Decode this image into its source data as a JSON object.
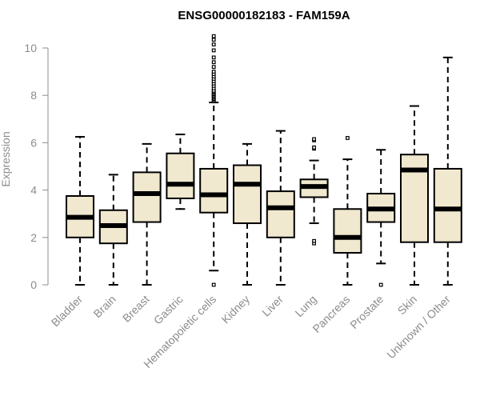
{
  "chart_data": {
    "type": "boxplot",
    "title": "ENSG00000182183 - FAM159A",
    "xlabel": "",
    "ylabel": "Expression",
    "ylim": [
      0,
      10.5
    ],
    "yticks": [
      0,
      2,
      4,
      6,
      8,
      10
    ],
    "grid": false,
    "legend": "none",
    "colors": {
      "box_fill": "#f0e8cf",
      "box_stroke": "#000000",
      "axis": "#8c8c8c",
      "title": "#000000"
    },
    "categories": [
      "Bladder",
      "Brain",
      "Breast",
      "Gastric",
      "Hematopoietic cells",
      "Kidney",
      "Liver",
      "Lung",
      "Pancreas",
      "Prostate",
      "Skin",
      "Unknown / Other"
    ],
    "series": [
      {
        "name": "Bladder",
        "min": 0,
        "q1": 2.0,
        "median": 2.85,
        "q3": 3.75,
        "max": 6.25,
        "outliers": []
      },
      {
        "name": "Brain",
        "min": 0,
        "q1": 1.75,
        "median": 2.5,
        "q3": 3.15,
        "max": 4.65,
        "outliers": []
      },
      {
        "name": "Breast",
        "min": 0,
        "q1": 2.65,
        "median": 3.85,
        "q3": 4.75,
        "max": 5.95,
        "outliers": []
      },
      {
        "name": "Gastric",
        "min": 3.2,
        "q1": 3.65,
        "median": 4.25,
        "q3": 5.55,
        "max": 6.35,
        "outliers": []
      },
      {
        "name": "Hematopoietic cells",
        "min": 0.6,
        "q1": 3.05,
        "median": 3.8,
        "q3": 4.9,
        "max": 7.7,
        "outliers": [
          0.0,
          7.75,
          7.8,
          7.85,
          7.9,
          7.95,
          8.0,
          8.05,
          8.1,
          8.15,
          8.2,
          8.3,
          8.4,
          8.5,
          8.6,
          8.7,
          8.8,
          8.9,
          9.0,
          9.2,
          9.4,
          9.6,
          9.9,
          10.15,
          10.35,
          10.5
        ]
      },
      {
        "name": "Kidney",
        "min": 0,
        "q1": 2.6,
        "median": 4.25,
        "q3": 5.05,
        "max": 5.95,
        "outliers": []
      },
      {
        "name": "Liver",
        "min": 0,
        "q1": 2.0,
        "median": 3.25,
        "q3": 3.95,
        "max": 6.5,
        "outliers": []
      },
      {
        "name": "Lung",
        "min": 2.6,
        "q1": 3.7,
        "median": 4.15,
        "q3": 4.45,
        "max": 5.25,
        "outliers": [
          1.75,
          1.85,
          5.75,
          5.8,
          6.1,
          6.15
        ]
      },
      {
        "name": "Pancreas",
        "min": 0,
        "q1": 1.35,
        "median": 2.0,
        "q3": 3.2,
        "max": 5.3,
        "outliers": [
          6.2
        ]
      },
      {
        "name": "Prostate",
        "min": 0.9,
        "q1": 2.65,
        "median": 3.2,
        "q3": 3.85,
        "max": 5.7,
        "outliers": [
          0.0
        ]
      },
      {
        "name": "Skin",
        "min": 0,
        "q1": 1.8,
        "median": 4.85,
        "q3": 5.5,
        "max": 7.55,
        "outliers": []
      },
      {
        "name": "Unknown / Other",
        "min": 0,
        "q1": 1.8,
        "median": 3.2,
        "q3": 4.9,
        "max": 9.6,
        "outliers": []
      }
    ]
  }
}
